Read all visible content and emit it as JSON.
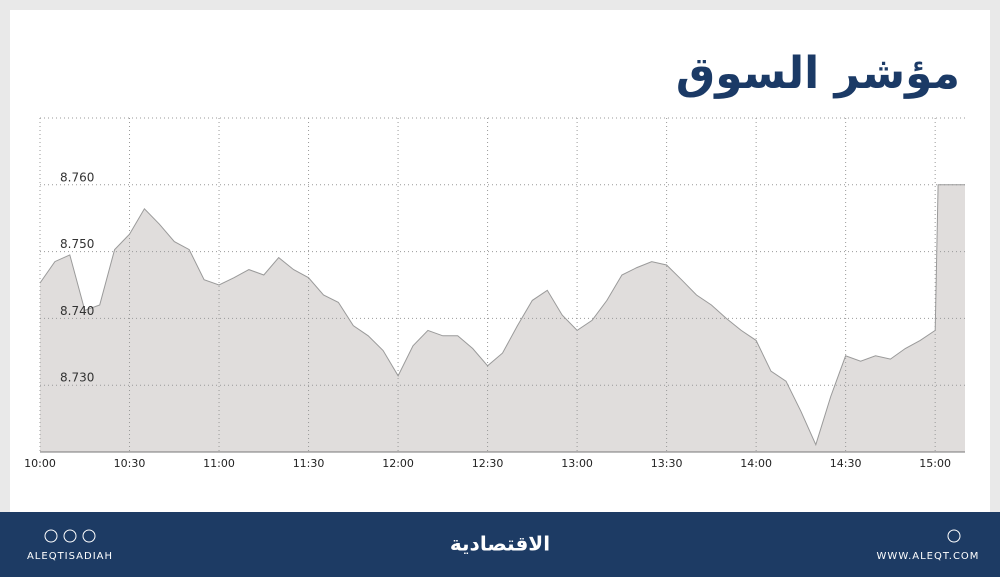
{
  "chart_data": {
    "type": "area",
    "title": "مؤشر السوق",
    "x": [
      "10:00",
      "10:05",
      "10:10",
      "10:15",
      "10:20",
      "10:25",
      "10:30",
      "10:35",
      "10:40",
      "10:45",
      "10:50",
      "10:55",
      "11:00",
      "11:05",
      "11:10",
      "11:15",
      "11:20",
      "11:25",
      "11:30",
      "11:35",
      "11:40",
      "11:45",
      "11:50",
      "11:55",
      "12:00",
      "12:05",
      "12:10",
      "12:15",
      "12:20",
      "12:25",
      "12:30",
      "12:35",
      "12:40",
      "12:45",
      "12:50",
      "12:55",
      "13:00",
      "13:05",
      "13:10",
      "13:15",
      "13:20",
      "13:25",
      "13:30",
      "13:35",
      "13:40",
      "13:45",
      "13:50",
      "13:55",
      "14:00",
      "14:05",
      "14:10",
      "14:15",
      "14:20",
      "14:25",
      "14:30",
      "14:35",
      "14:40",
      "14:45",
      "14:50",
      "14:55",
      "15:00",
      "15:01",
      "15:10"
    ],
    "values": [
      8.7453,
      8.7485,
      8.7495,
      8.7412,
      8.742,
      8.7503,
      8.7526,
      8.7564,
      8.7541,
      8.7515,
      8.7503,
      8.7458,
      8.745,
      8.7461,
      8.7473,
      8.7465,
      8.7491,
      8.7473,
      8.7461,
      8.7435,
      8.7424,
      8.7389,
      8.7374,
      8.7352,
      8.7314,
      8.7359,
      8.7382,
      8.7374,
      8.7374,
      8.7355,
      8.7329,
      8.7348,
      8.7389,
      8.7427,
      8.7442,
      8.7405,
      8.7382,
      8.7397,
      8.7427,
      8.7465,
      8.7476,
      8.7485,
      8.748,
      8.7458,
      8.7435,
      8.742,
      8.74,
      8.7382,
      8.7367,
      8.7321,
      8.7306,
      8.7261,
      8.7211,
      8.7283,
      8.7344,
      8.7336,
      8.7344,
      8.7339,
      8.7355,
      8.7367,
      8.7382,
      8.76,
      8.76
    ],
    "color": "#e0dddc",
    "line_color": "#9a9a9a",
    "xlim": [
      "10:00",
      "15:10"
    ],
    "xticks": [
      "10:00",
      "10:30",
      "11:00",
      "11:30",
      "12:00",
      "12:30",
      "13:00",
      "13:30",
      "14:00",
      "14:30",
      "15:00"
    ],
    "ylim": [
      8.72,
      8.77
    ],
    "yticks": [
      {
        "value": 8.73,
        "label": "8.730"
      },
      {
        "value": 8.74,
        "label": "8.740"
      },
      {
        "value": 8.75,
        "label": "8.750"
      },
      {
        "value": 8.76,
        "label": "8.760"
      }
    ],
    "grid": true
  },
  "footer": {
    "left": "ALEQTISADIAH",
    "logo": "الاقتصادية",
    "right": "WWW.ALEQT.COM"
  }
}
